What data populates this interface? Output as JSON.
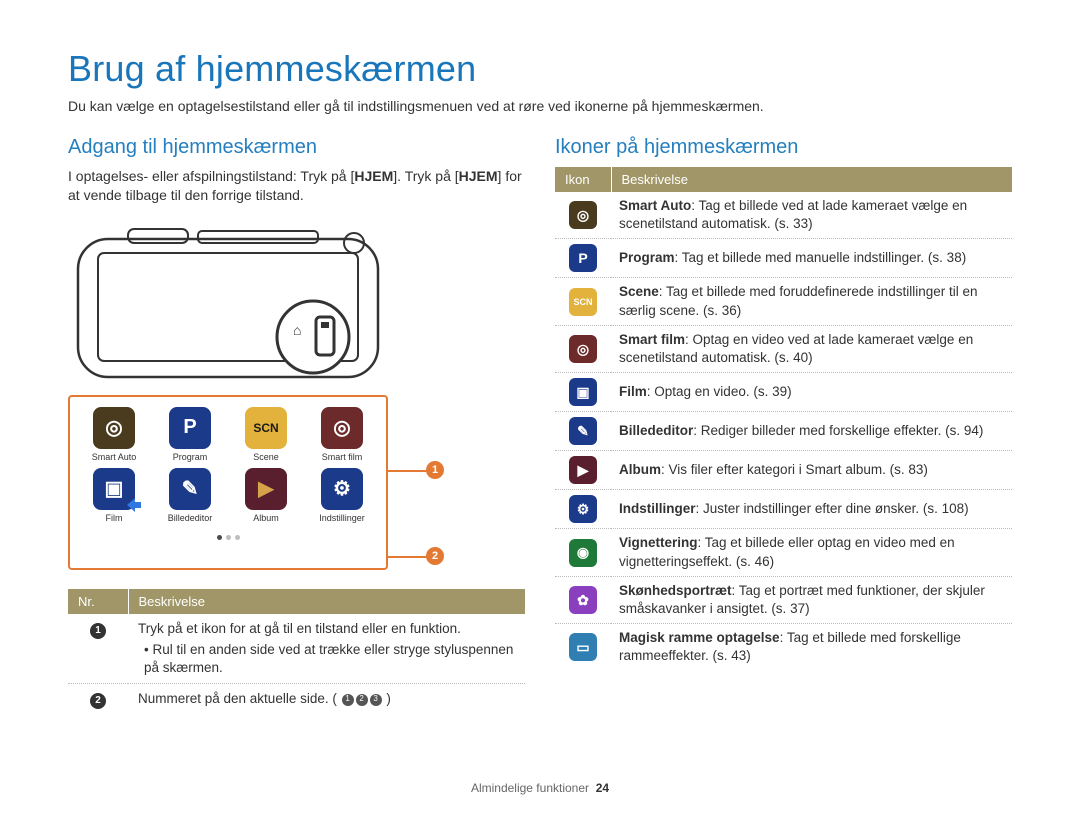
{
  "title": "Brug af hjemmeskærmen",
  "intro": "Du kan vælge en optagelsestilstand eller gå til indstillingsmenuen ved at røre ved ikonerne på hjemmeskærmen.",
  "left": {
    "heading": "Adgang til hjemmeskærmen",
    "body_before": "I optagelses- eller afspilningstilstand: Tryk på [",
    "body_hjem1": "HJEM",
    "body_mid": "]. Tryk på [",
    "body_hjem2": "HJEM",
    "body_after": "] for at vende tilbage til den forrige tilstand.",
    "apps": [
      {
        "label": "Smart Auto",
        "glyph": "◎",
        "bg": "#4a3b1e",
        "fg": "#ffffff"
      },
      {
        "label": "Program",
        "glyph": "P",
        "bg": "#1c3a8a",
        "fg": "#ffffff"
      },
      {
        "label": "Scene",
        "glyph": "SCN",
        "bg": "#e3b23c",
        "fg": "#1b1b1b"
      },
      {
        "label": "Smart film",
        "glyph": "◎",
        "bg": "#6c2a2a",
        "fg": "#ffffff"
      },
      {
        "label": "Film",
        "glyph": "▣",
        "bg": "#1c3a8a",
        "fg": "#ffffff"
      },
      {
        "label": "Billededitor",
        "glyph": "✎",
        "bg": "#1c3a8a",
        "fg": "#ffffff"
      },
      {
        "label": "Album",
        "glyph": "▶",
        "bg": "#5a1f2f",
        "fg": "#d6a24a"
      },
      {
        "label": "Indstillinger",
        "glyph": "⚙",
        "bg": "#1c3a8a",
        "fg": "#ffffff"
      }
    ],
    "page_dots": [
      "#4c4c4c",
      "#bdbdbd",
      "#bdbdbd"
    ],
    "callouts": {
      "1": "1",
      "2": "2"
    },
    "table": {
      "headers": [
        "Nr.",
        "Beskrivelse"
      ],
      "rows": [
        {
          "num": "1",
          "text": "Tryk på et ikon for at gå til en tilstand eller en funktion.",
          "bullet": "Rul til en anden side ved at trække eller stryge styluspennen på skærmen."
        },
        {
          "num": "2",
          "text_before": "Nummeret på den aktuelle side. (",
          "text_after": ")",
          "dots": [
            "1",
            "2",
            "3"
          ]
        }
      ]
    }
  },
  "right": {
    "heading": "Ikoner på hjemmeskærmen",
    "headers": [
      "Ikon",
      "Beskrivelse"
    ],
    "rows": [
      {
        "bg": "#4a3b1e",
        "glyph": "◎",
        "name": "Smart Auto",
        "rest": ": Tag et billede ved at lade kameraet vælge en scenetilstand automatisk. (s. 33)"
      },
      {
        "bg": "#1c3a8a",
        "glyph": "P",
        "name": "Program",
        "rest": ": Tag et billede med manuelle indstillinger. (s. 38)"
      },
      {
        "bg": "#e3b23c",
        "glyph": "SCN",
        "name": "Scene",
        "rest": ": Tag et billede med foruddefinerede indstillinger til en særlig scene. (s. 36)"
      },
      {
        "bg": "#6c2a2a",
        "glyph": "◎",
        "name": "Smart film",
        "rest": ": Optag en video ved at lade kameraet vælge en scenetilstand automatisk. (s. 40)"
      },
      {
        "bg": "#1c3a8a",
        "glyph": "▣",
        "name": "Film",
        "rest": ": Optag en video. (s. 39)"
      },
      {
        "bg": "#1c3a8a",
        "glyph": "✎",
        "name": "Billededitor",
        "rest": ": Rediger billeder med forskellige effekter. (s. 94)"
      },
      {
        "bg": "#5a1f2f",
        "glyph": "▶",
        "name": "Album",
        "rest": ": Vis filer efter kategori i Smart album. (s. 83)"
      },
      {
        "bg": "#1c3a8a",
        "glyph": "⚙",
        "name": "Indstillinger",
        "rest": ": Juster indstillinger efter dine ønsker. (s. 108)"
      },
      {
        "bg": "#1f7a3a",
        "glyph": "◉",
        "name": "Vignettering",
        "rest": ": Tag et billede eller optag en video med en vignetteringseffekt. (s. 46)"
      },
      {
        "bg": "#8a3fbf",
        "glyph": "✿",
        "name": "Skønhedsportræt",
        "rest": ": Tag et portræt med funktioner, der skjuler småskavanker i ansigtet. (s. 37)"
      },
      {
        "bg": "#2f7fb3",
        "glyph": "▭",
        "name": "Magisk ramme optagelse",
        "rest": ": Tag et billede med forskellige rammeeffekter. (s. 43)"
      }
    ]
  },
  "footer": {
    "text": "Almindelige funktioner",
    "page": "24"
  },
  "colors": {
    "accent_orange": "#e27a33",
    "blue": "#247fbf",
    "header_bg": "#a19667"
  }
}
